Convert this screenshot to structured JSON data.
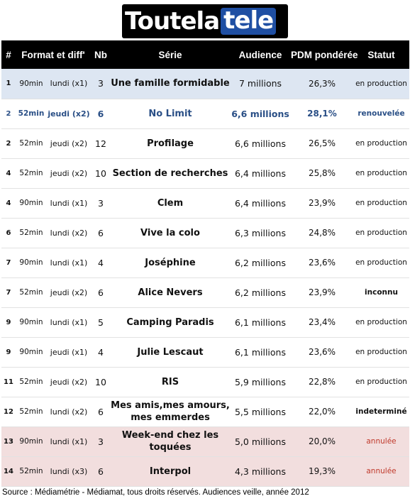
{
  "logo": {
    "part_a": "Toutela",
    "part_b": "tele"
  },
  "columns": {
    "rank": "#",
    "format": "Format et diff'",
    "nb": "Nb",
    "serie": "Série",
    "audience": "Audience",
    "pdm": "PDM pondérée",
    "statut": "Statut"
  },
  "rows": [
    {
      "rank": "1",
      "duration": "90min",
      "day": "lundi (x1)",
      "nb": "3",
      "serie": "Une famille formidable",
      "audience": "7 millions",
      "pdm": "26,3%",
      "statut": "en production",
      "style": "first"
    },
    {
      "rank": "2",
      "duration": "52min",
      "day": "jeudi (x2)",
      "nb": "6",
      "serie": "No Limit",
      "audience": "6,6 millions",
      "pdm": "28,1%",
      "statut": "renouvelée",
      "style": "renew"
    },
    {
      "rank": "2",
      "duration": "52min",
      "day": "jeudi (x2)",
      "nb": "12",
      "serie": "Profilage",
      "audience": "6,6 millions",
      "pdm": "26,5%",
      "statut": "en production",
      "style": "normal"
    },
    {
      "rank": "4",
      "duration": "52min",
      "day": "jeudi (x2)",
      "nb": "10",
      "serie": "Section de recherches",
      "audience": "6,4 millions",
      "pdm": "25,8%",
      "statut": "en production",
      "style": "normal"
    },
    {
      "rank": "4",
      "duration": "90min",
      "day": "lundi (x1)",
      "nb": "3",
      "serie": "Clem",
      "audience": "6,4 millions",
      "pdm": "23,9%",
      "statut": "en production",
      "style": "normal"
    },
    {
      "rank": "6",
      "duration": "52min",
      "day": "lundi (x2)",
      "nb": "6",
      "serie": "Vive la colo",
      "audience": "6,3 millions",
      "pdm": "24,8%",
      "statut": "en production",
      "style": "normal"
    },
    {
      "rank": "7",
      "duration": "90min",
      "day": "lundi (x1)",
      "nb": "4",
      "serie": "Joséphine",
      "audience": "6,2 millions",
      "pdm": "23,6%",
      "statut": "en production",
      "style": "normal"
    },
    {
      "rank": "7",
      "duration": "52min",
      "day": "jeudi (x2)",
      "nb": "6",
      "serie": "Alice Nevers",
      "audience": "6,2 millions",
      "pdm": "23,9%",
      "statut": "inconnu",
      "style": "bold-status"
    },
    {
      "rank": "9",
      "duration": "90min",
      "day": "lundi (x1)",
      "nb": "5",
      "serie": "Camping Paradis",
      "audience": "6,1 millions",
      "pdm": "23,4%",
      "statut": "en production",
      "style": "normal"
    },
    {
      "rank": "9",
      "duration": "90min",
      "day": "jeudi (x1)",
      "nb": "4",
      "serie": "Julie Lescaut",
      "audience": "6,1 millions",
      "pdm": "23,6%",
      "statut": "en production",
      "style": "normal"
    },
    {
      "rank": "11",
      "duration": "52min",
      "day": "jeudi (x2)",
      "nb": "10",
      "serie": "RIS",
      "audience": "5,9 millions",
      "pdm": "22,8%",
      "statut": "en production",
      "style": "normal"
    },
    {
      "rank": "12",
      "duration": "52min",
      "day": "lundi (x2)",
      "nb": "6",
      "serie": "Mes amis,mes amours, mes emmerdes",
      "audience": "5,5 millions",
      "pdm": "22,0%",
      "statut": "indeterminé",
      "style": "bold-status"
    },
    {
      "rank": "13",
      "duration": "90min",
      "day": "lundi (x1)",
      "nb": "3",
      "serie": "Week-end chez les toquées",
      "audience": "5,0 millions",
      "pdm": "20,0%",
      "statut": "annulée",
      "style": "cancel"
    },
    {
      "rank": "14",
      "duration": "52min",
      "day": "lundi (x3)",
      "nb": "6",
      "serie": "Interpol",
      "audience": "4,3 millions",
      "pdm": "19,3%",
      "statut": "annulée",
      "style": "cancel"
    }
  ],
  "colors": {
    "header_bg": "#000000",
    "first_row_bg": "#dde6f2",
    "renewed_text": "#2a4f86",
    "cancelled_row_bg": "#f2dede",
    "cancelled_text": "#c0392b",
    "logo_accent": "#1f4fa3"
  },
  "source": "Source : Médiamétrie - Médiamat, tous droits réservés. Audiences veille, année 2012"
}
